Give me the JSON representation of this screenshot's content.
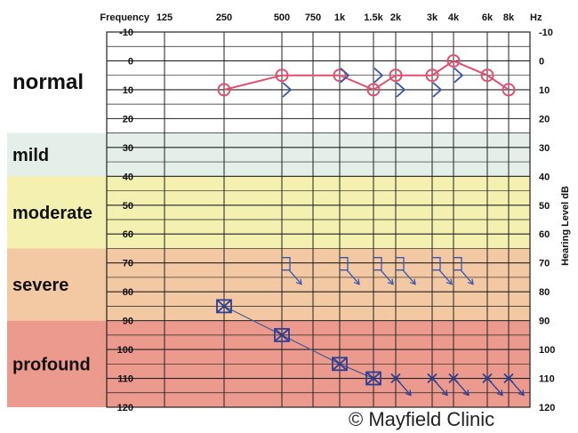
{
  "chart_data": {
    "type": "audiogram",
    "x_title": "Frequency",
    "x_unit": "Hz",
    "y_title": "Hearing Level dB",
    "frequencies": [
      "125",
      "250",
      "500",
      "750",
      "1k",
      "1.5k",
      "2k",
      "3k",
      "4k",
      "6k",
      "8k"
    ],
    "y_ticks": [
      -10,
      0,
      10,
      20,
      30,
      40,
      50,
      60,
      70,
      80,
      90,
      100,
      110,
      120
    ],
    "ylim": [
      -10,
      120
    ],
    "grid": true,
    "bands": [
      {
        "label": "normal",
        "from": -10,
        "to": 25,
        "color": "#ffffff"
      },
      {
        "label": "mild",
        "from": 25,
        "to": 40,
        "color": "#e4efea"
      },
      {
        "label": "moderate",
        "from": 40,
        "to": 65,
        "color": "#f3f0b0"
      },
      {
        "label": "severe",
        "from": 65,
        "to": 90,
        "color": "#f2c9a2"
      },
      {
        "label": "profound",
        "from": 90,
        "to": 120,
        "color": "#ec9a8e"
      }
    ],
    "series": [
      {
        "symbol": "circle",
        "color": "#e0506e",
        "points": [
          [
            "250",
            10
          ],
          [
            "500",
            5
          ],
          [
            "1k",
            5
          ],
          [
            "1.5k",
            10
          ],
          [
            "2k",
            5
          ],
          [
            "3k",
            5
          ],
          [
            "4k",
            0
          ],
          [
            "6k",
            5
          ],
          [
            "8k",
            10
          ]
        ]
      },
      {
        "symbol": "bracket",
        "color": "#3a55b5",
        "points": [
          [
            "500",
            10
          ],
          [
            "1k",
            5
          ],
          [
            "1.5k",
            5
          ],
          [
            "2k",
            10
          ],
          [
            "3k",
            10
          ],
          [
            "4k",
            5
          ]
        ]
      },
      {
        "symbol": "boxed-x",
        "color": "#2a3f9a",
        "points": [
          [
            "250",
            85
          ],
          [
            "500",
            95
          ],
          [
            "1k",
            105
          ],
          [
            "1.5k",
            110
          ]
        ]
      },
      {
        "symbol": "x-no-response",
        "color": "#2a3f9a",
        "points": [
          [
            "2k",
            110
          ],
          [
            "3k",
            110
          ],
          [
            "4k",
            110
          ],
          [
            "6k",
            110
          ],
          [
            "8k",
            110
          ]
        ]
      },
      {
        "symbol": "bracket-no-response",
        "color": "#3a55b5",
        "points": [
          [
            "500",
            70
          ],
          [
            "1k",
            70
          ],
          [
            "1.5k",
            70
          ],
          [
            "2k",
            70
          ],
          [
            "3k",
            70
          ],
          [
            "4k",
            70
          ]
        ]
      }
    ]
  },
  "credit": "© Mayfield Clinic"
}
